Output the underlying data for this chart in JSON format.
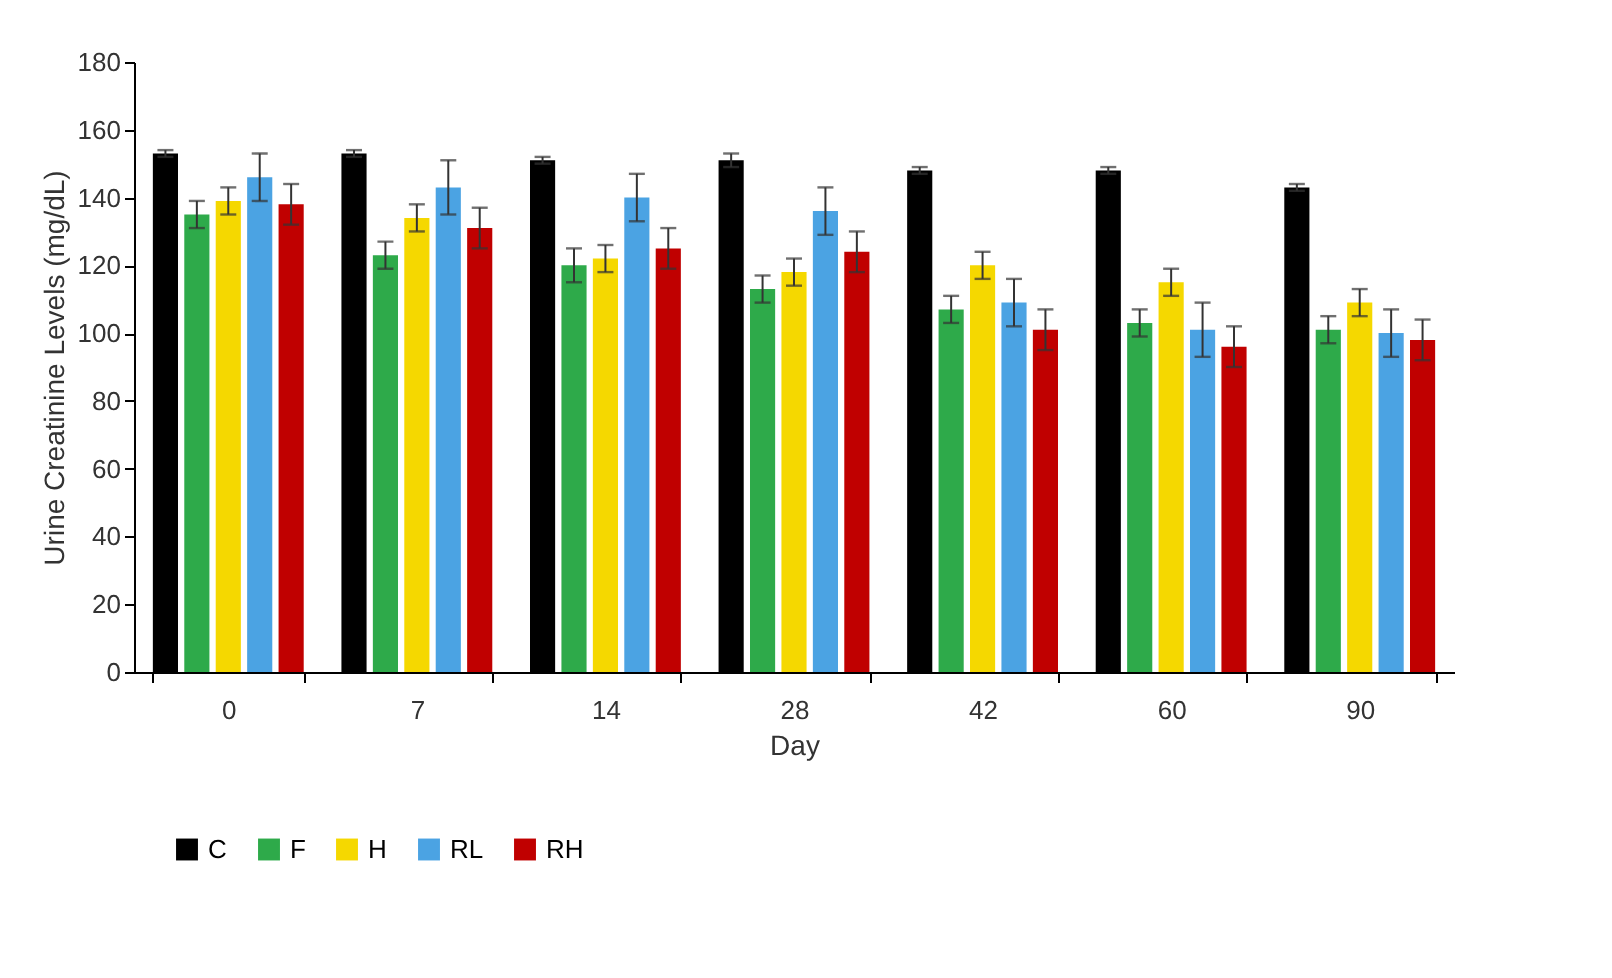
{
  "chart_data": {
    "type": "bar",
    "xlabel": "Day",
    "ylabel": "Urine Creatinine Levels (mg/dL)",
    "categories": [
      "0",
      "7",
      "14",
      "28",
      "42",
      "60",
      "90"
    ],
    "series": [
      {
        "name": "C",
        "color": "#000000",
        "values": [
          153,
          153,
          151,
          151,
          148,
          148,
          143
        ],
        "errors": [
          1,
          1,
          1,
          2,
          1,
          1,
          1
        ]
      },
      {
        "name": "F",
        "color": "#2eaa4a",
        "values": [
          135,
          123,
          120,
          113,
          107,
          103,
          101
        ],
        "errors": [
          4,
          4,
          5,
          4,
          4,
          4,
          4
        ]
      },
      {
        "name": "H",
        "color": "#f5d800",
        "values": [
          139,
          134,
          122,
          118,
          120,
          115,
          109
        ],
        "errors": [
          4,
          4,
          4,
          4,
          4,
          4,
          4
        ]
      },
      {
        "name": "RL",
        "color": "#4ba3e3",
        "values": [
          146,
          143,
          140,
          136,
          109,
          101,
          100
        ],
        "errors": [
          7,
          8,
          7,
          7,
          7,
          8,
          7
        ]
      },
      {
        "name": "RH",
        "color": "#c00000",
        "values": [
          138,
          131,
          125,
          124,
          101,
          96,
          98
        ],
        "errors": [
          6,
          6,
          6,
          6,
          6,
          6,
          6
        ]
      }
    ],
    "ylim": [
      0,
      180
    ],
    "yticks": [
      0,
      20,
      40,
      60,
      80,
      100,
      120,
      140,
      160,
      180
    ],
    "grid": false,
    "legend": "bottom"
  }
}
